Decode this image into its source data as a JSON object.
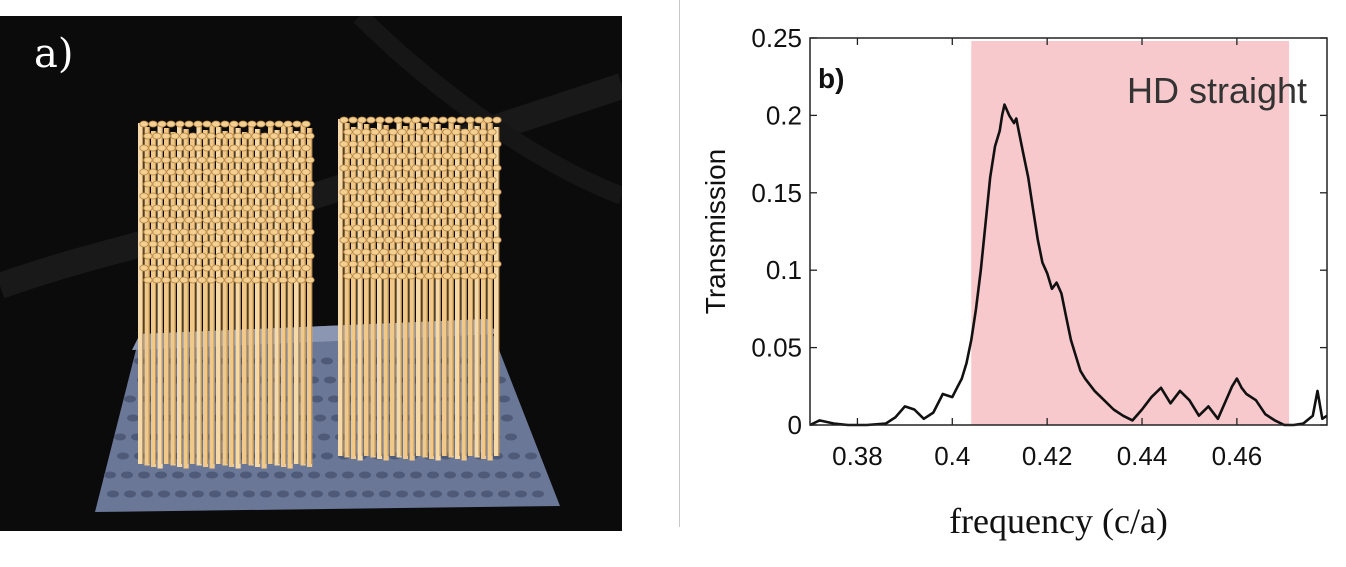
{
  "panels": {
    "a_label": "a)",
    "b_label": "b)"
  },
  "photo": {
    "background_color": "#0b0b0b",
    "tray_color": "#6a7797",
    "straw_color": "#f0c98a"
  },
  "chart_data": {
    "type": "line",
    "title": "",
    "xlabel": "frequency (c/a)",
    "ylabel": "Transmission",
    "xlim": [
      0.37,
      0.479
    ],
    "ylim": [
      0,
      0.25
    ],
    "xticks": [
      0.38,
      0.4,
      0.42,
      0.44,
      0.46
    ],
    "xtick_labels": [
      "0.38",
      "0.4",
      "0.42",
      "0.44",
      "0.46"
    ],
    "yticks": [
      0,
      0.05,
      0.1,
      0.15,
      0.2,
      0.25
    ],
    "ytick_labels": [
      "0",
      "0.05",
      "0.1",
      "0.15",
      "0.2",
      "0.25"
    ],
    "grid": false,
    "line_color": "#111111",
    "band": {
      "x_start": 0.404,
      "x_end": 0.471,
      "label": "HD straight",
      "color": "#f7c9cc"
    },
    "series": [
      {
        "x": [
          0.37,
          0.372,
          0.375,
          0.378,
          0.382,
          0.386,
          0.388,
          0.39,
          0.392,
          0.394,
          0.396,
          0.398,
          0.4,
          0.401,
          0.402,
          0.403,
          0.404,
          0.405,
          0.406,
          0.407,
          0.408,
          0.409,
          0.41,
          0.4105,
          0.411,
          0.412,
          0.413,
          0.4135,
          0.414,
          0.415,
          0.416,
          0.417,
          0.418,
          0.419,
          0.42,
          0.421,
          0.422,
          0.423,
          0.424,
          0.425,
          0.426,
          0.427,
          0.428,
          0.43,
          0.432,
          0.434,
          0.436,
          0.438,
          0.44,
          0.442,
          0.444,
          0.446,
          0.448,
          0.45,
          0.452,
          0.454,
          0.456,
          0.458,
          0.459,
          0.46,
          0.461,
          0.462,
          0.464,
          0.466,
          0.468,
          0.47,
          0.472,
          0.474,
          0.476,
          0.477,
          0.478,
          0.479
        ],
        "y": [
          0.0,
          0.003,
          0.001,
          0.0,
          0.0,
          0.001,
          0.005,
          0.012,
          0.01,
          0.004,
          0.008,
          0.02,
          0.018,
          0.024,
          0.03,
          0.04,
          0.055,
          0.075,
          0.1,
          0.13,
          0.16,
          0.18,
          0.19,
          0.2,
          0.207,
          0.2,
          0.195,
          0.198,
          0.19,
          0.175,
          0.16,
          0.14,
          0.12,
          0.105,
          0.098,
          0.088,
          0.092,
          0.085,
          0.07,
          0.055,
          0.045,
          0.035,
          0.03,
          0.022,
          0.016,
          0.01,
          0.006,
          0.003,
          0.01,
          0.018,
          0.024,
          0.014,
          0.022,
          0.016,
          0.006,
          0.012,
          0.004,
          0.018,
          0.025,
          0.03,
          0.024,
          0.02,
          0.016,
          0.007,
          0.003,
          0.0,
          0.0,
          0.001,
          0.006,
          0.022,
          0.004,
          0.006
        ]
      }
    ]
  }
}
